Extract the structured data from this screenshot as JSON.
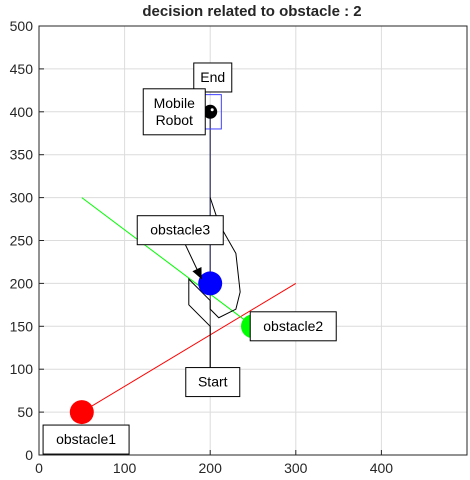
{
  "chart_data": {
    "type": "scatter",
    "title": "decision related to obstacle  : 2",
    "xlabel": "",
    "ylabel": "",
    "xlim": [
      0,
      500
    ],
    "ylim": [
      0,
      500
    ],
    "x_ticks": [
      0,
      100,
      200,
      300,
      400
    ],
    "y_ticks": [
      0,
      50,
      100,
      150,
      200,
      250,
      300,
      350,
      400,
      450,
      500
    ],
    "grid": true,
    "colors": {
      "obstacle1": "#ff0000",
      "obstacle2": "#00ff00",
      "obstacle3": "#0000ff",
      "robot": "#000000",
      "path": "#000000",
      "start_end_line": "#404040",
      "robot_box": "#4040ff",
      "red_line": "#ff0000",
      "green_line": "#00ff00",
      "blue_line": "#0000ff"
    },
    "points": [
      {
        "label": "obstacle1",
        "x": 50,
        "y": 50,
        "color": "#ff0000"
      },
      {
        "label": "obstacle2",
        "x": 250,
        "y": 150,
        "color": "#00ff00"
      },
      {
        "label": "obstacle3",
        "x": 200,
        "y": 200,
        "color": "#0000ff"
      },
      {
        "label": "Mobile Robot",
        "x": 200,
        "y": 400,
        "color": "#000000"
      }
    ],
    "lines": [
      {
        "name": "red-line",
        "color": "#ff0000",
        "x": [
          50,
          300
        ],
        "y": [
          50,
          200
        ]
      },
      {
        "name": "green-line",
        "color": "#00ff00",
        "x": [
          50,
          250
        ],
        "y": [
          300,
          150
        ]
      },
      {
        "name": "blue-line",
        "color": "#0000ff",
        "x": [
          200,
          200
        ],
        "y": [
          200,
          400
        ]
      },
      {
        "name": "start-end-line",
        "color": "#404040",
        "x": [
          200,
          200
        ],
        "y": [
          100,
          400
        ]
      },
      {
        "name": "robot-path",
        "color": "#000000",
        "x": [
          200,
          200,
          175,
          175,
          200,
          200,
          210,
          230,
          235,
          230,
          210,
          200
        ],
        "y": [
          100,
          150,
          175,
          205,
          180,
          170,
          160,
          170,
          190,
          235,
          270,
          300
        ]
      }
    ],
    "robot_box": {
      "x": [
        187,
        213
      ],
      "y": [
        380,
        420
      ]
    },
    "annotations": [
      {
        "text": "End",
        "x": 203,
        "y": 440
      },
      {
        "text": "Mobile\nRobot",
        "x": 158,
        "y": 400
      },
      {
        "text": "obstacle3",
        "x": 165,
        "y": 262
      },
      {
        "text": "obstacle2",
        "x": 297,
        "y": 150
      },
      {
        "text": "Start",
        "x": 203,
        "y": 85
      },
      {
        "text": "obstacle1",
        "x": 55,
        "y": 18
      }
    ],
    "arrow": {
      "from": [
        163,
        262
      ],
      "to": [
        190,
        205
      ]
    }
  }
}
